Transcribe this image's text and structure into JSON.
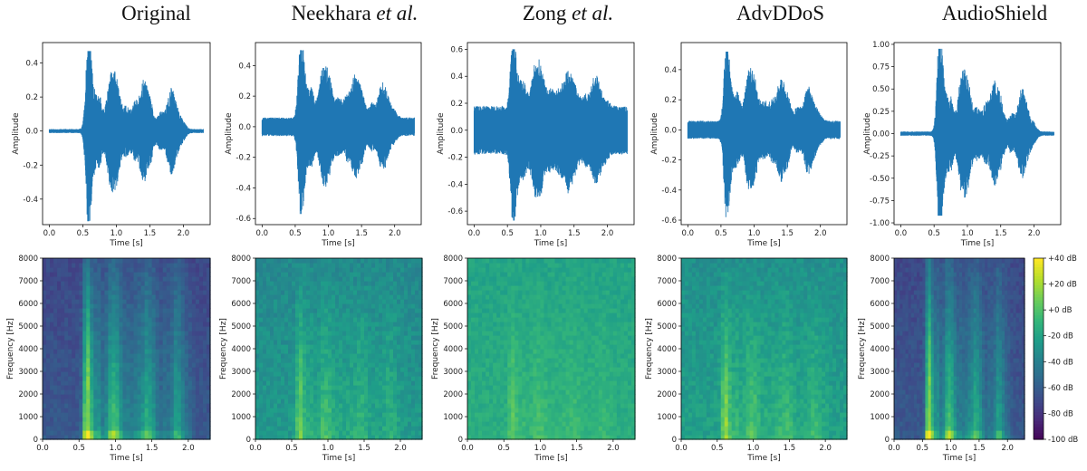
{
  "columns": [
    {
      "key": "orig",
      "title_main": "Original",
      "title_em": "",
      "noise_wave": 0.0,
      "wave_scale": 1.0,
      "spec_mode": "clean"
    },
    {
      "key": "neek",
      "title_main": "Neekhara ",
      "title_em": "et al.",
      "noise_wave": 0.05,
      "wave_scale": 1.0,
      "spec_mode": "noisy"
    },
    {
      "key": "zong",
      "title_main": "Zong ",
      "title_em": "et al.",
      "noise_wave": 0.17,
      "wave_scale": 1.0,
      "spec_mode": "flat"
    },
    {
      "key": "advd",
      "title_main": "AdvDDoS",
      "title_em": "",
      "noise_wave": 0.05,
      "wave_scale": 1.0,
      "spec_mode": "noisy2"
    },
    {
      "key": "shield",
      "title_main": "AudioShield",
      "title_em": "",
      "noise_wave": 0.0,
      "wave_scale": 2.0,
      "spec_mode": "clean"
    }
  ],
  "chart_data": [
    {
      "type": "line",
      "panel": "Original waveform",
      "xlabel": "Time [s]",
      "ylabel": "Amplitude",
      "xlim": [
        -0.1,
        2.4
      ],
      "ylim": [
        -0.55,
        0.52
      ],
      "xticks": [
        "0.0",
        "0.5",
        "1.0",
        "1.5",
        "2.0"
      ],
      "yticks": [
        "0.4",
        "0.2",
        "0.0",
        "-0.2",
        "-0.4"
      ],
      "ytick_values": [
        0.4,
        0.2,
        0.0,
        -0.2,
        -0.4
      ],
      "peak_max": 0.47,
      "peak_min": -0.53
    },
    {
      "type": "line",
      "panel": "Neekhara et al. waveform",
      "xlabel": "Time [s]",
      "ylabel": "Amplitude",
      "xlim": [
        -0.1,
        2.4
      ],
      "ylim": [
        -0.64,
        0.55
      ],
      "xticks": [
        "0.0",
        "0.5",
        "1.0",
        "1.5",
        "2.0"
      ],
      "yticks": [
        "0.4",
        "0.2",
        "0.0",
        "-0.2",
        "-0.4",
        "-0.6"
      ],
      "ytick_values": [
        0.4,
        0.2,
        0.0,
        -0.2,
        -0.4,
        -0.6
      ],
      "peak_max": 0.5,
      "peak_min": -0.57
    },
    {
      "type": "line",
      "panel": "Zong et al. waveform",
      "xlabel": "Time [s]",
      "ylabel": "Amplitude",
      "xlim": [
        -0.1,
        2.4
      ],
      "ylim": [
        -0.7,
        0.65
      ],
      "xticks": [
        "0.0",
        "0.5",
        "1.0",
        "1.5",
        "2.0"
      ],
      "yticks": [
        "0.6",
        "0.4",
        "0.2",
        "0.0",
        "-0.2",
        "-0.4",
        "-0.6"
      ],
      "ytick_values": [
        0.6,
        0.4,
        0.2,
        0.0,
        -0.2,
        -0.4,
        -0.6
      ],
      "peak_max": 0.6,
      "peak_min": -0.67
    },
    {
      "type": "line",
      "panel": "AdvDDoS waveform",
      "xlabel": "Time [s]",
      "ylabel": "Amplitude",
      "xlim": [
        -0.1,
        2.4
      ],
      "ylim": [
        -0.63,
        0.58
      ],
      "xticks": [
        "0.0",
        "0.5",
        "1.0",
        "1.5",
        "2.0"
      ],
      "yticks": [
        "0.4",
        "0.2",
        "0.0",
        "-0.2",
        "-0.4",
        "-0.6"
      ],
      "ytick_values": [
        0.4,
        0.2,
        0.0,
        -0.2,
        -0.4,
        -0.6
      ],
      "peak_max": 0.52,
      "peak_min": -0.58
    },
    {
      "type": "line",
      "panel": "AudioShield waveform",
      "xlabel": "Time [s]",
      "ylabel": "Amplitude",
      "xlim": [
        -0.1,
        2.4
      ],
      "ylim": [
        -1.02,
        1.02
      ],
      "xticks": [
        "0.0",
        "0.5",
        "1.0",
        "1.5",
        "2.0"
      ],
      "yticks": [
        "1.00",
        "0.75",
        "0.50",
        "0.25",
        "0.00",
        "-0.25",
        "-0.50",
        "-0.75",
        "-1.00"
      ],
      "ytick_values": [
        1.0,
        0.75,
        0.5,
        0.25,
        0.0,
        -0.25,
        -0.5,
        -0.75,
        -1.0
      ],
      "peak_max": 0.95,
      "peak_min": -0.92
    },
    {
      "type": "heatmap",
      "panel": "spectrograms",
      "xlabel": "Time [s]",
      "ylabel": "Frequency [Hz]",
      "xlim": [
        0,
        2.3
      ],
      "ylim": [
        0,
        8000
      ],
      "xticks": [
        "0.0",
        "0.5",
        "1.0",
        "1.5",
        "2.0"
      ],
      "yticks": [
        "8000",
        "7000",
        "6000",
        "5000",
        "4000",
        "3000",
        "2000",
        "1000",
        "0"
      ],
      "ytick_values": [
        8000,
        7000,
        6000,
        5000,
        4000,
        3000,
        2000,
        1000,
        0
      ],
      "colorbar": {
        "labels": [
          "+40 dB",
          "+20 dB",
          "+0 dB",
          "-20 dB",
          "-40 dB",
          "-60 dB",
          "-80 dB",
          "-100 dB"
        ],
        "range": [
          -100,
          40
        ]
      }
    }
  ],
  "colors": {
    "wave": "#1f77b4",
    "axis": "#222222"
  }
}
